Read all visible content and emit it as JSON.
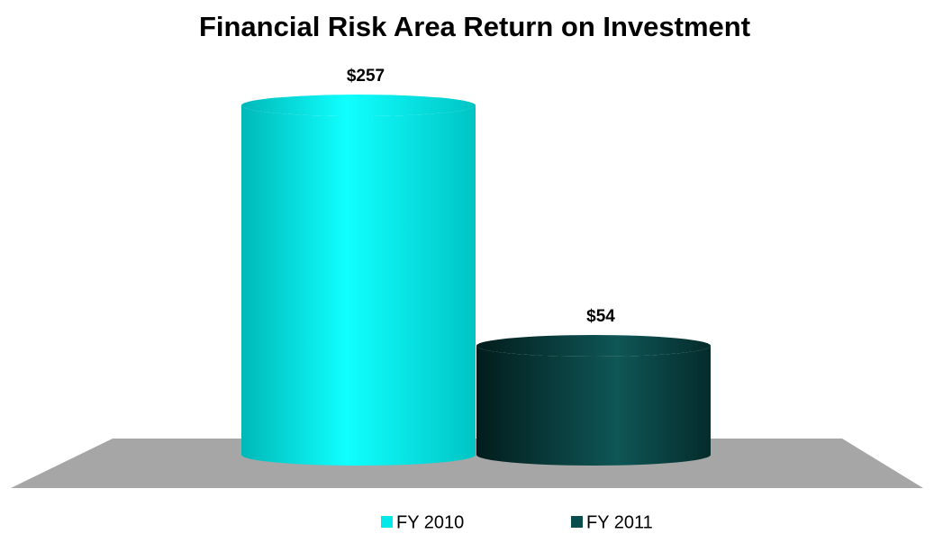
{
  "chart_data": {
    "type": "bar",
    "title": "Financial Risk Area Return on Investment",
    "categories": [
      null
    ],
    "series": [
      {
        "name": "FY 2010",
        "color": "#00e8e8",
        "values": [
          257
        ],
        "value_labels": [
          "$257"
        ]
      },
      {
        "name": "FY 2011",
        "color": "#0a4d4d",
        "values": [
          54
        ],
        "value_labels": [
          "$54"
        ]
      }
    ],
    "legend": "bottom"
  }
}
